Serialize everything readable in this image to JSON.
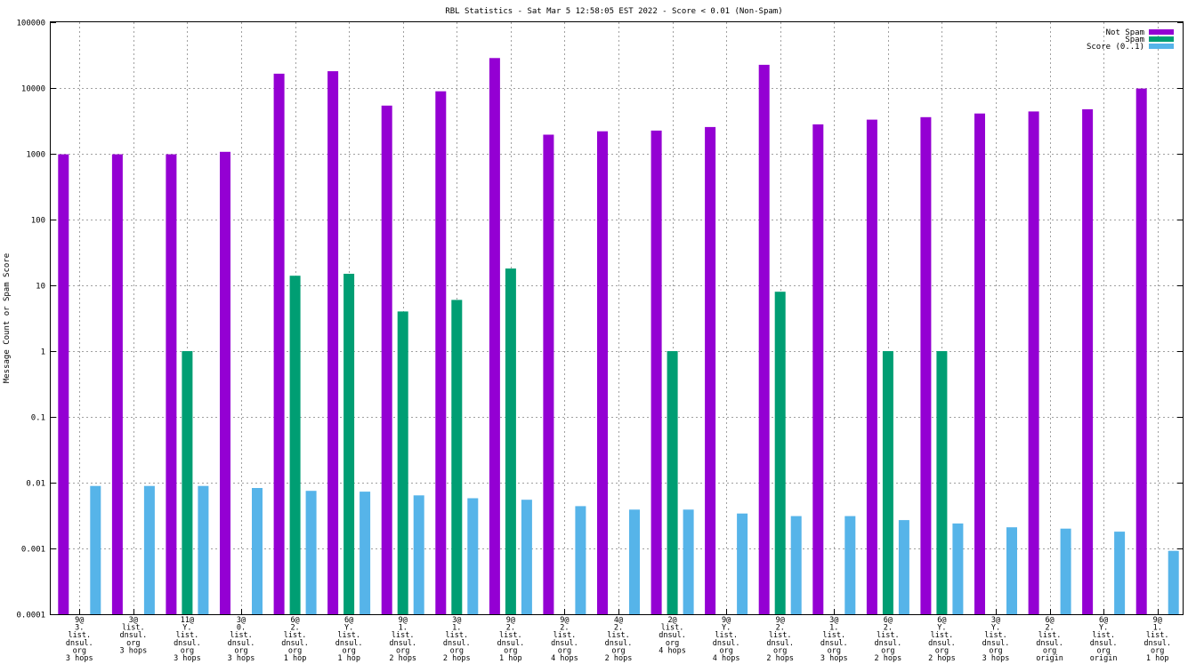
{
  "chart_data": {
    "type": "bar",
    "title": "RBL Statistics - Sat Mar  5 12:58:05 EST 2022 - Score < 0.01 (Non-Spam)",
    "ylabel": "Message Count or Spam Score",
    "xlabel": "",
    "yscale": "log",
    "ylim": [
      0.0001,
      100000
    ],
    "yticks": [
      "0.0001",
      "0.001",
      "0.01",
      "0.1",
      "1",
      "10",
      "100",
      "1000",
      "10000",
      "100000"
    ],
    "grid": true,
    "legend_position": "top-right",
    "categories": [
      [
        "9@",
        "3.",
        "list.",
        "dnsul.",
        "org",
        "3 hops"
      ],
      [
        "3@",
        "list.",
        "dnsul.",
        "org",
        "3 hops"
      ],
      [
        "11@",
        "Y.",
        "list.",
        "dnsul.",
        "org",
        "3 hops"
      ],
      [
        "3@",
        "0.",
        "list.",
        "dnsul.",
        "org",
        "3 hops"
      ],
      [
        "6@",
        "2.",
        "list.",
        "dnsul.",
        "org",
        "1 hop"
      ],
      [
        "6@",
        "Y.",
        "list.",
        "dnsul.",
        "org",
        "1 hop"
      ],
      [
        "9@",
        "1.",
        "list.",
        "dnsul.",
        "org",
        "2 hops"
      ],
      [
        "3@",
        "1.",
        "list.",
        "dnsul.",
        "org",
        "2 hops"
      ],
      [
        "9@",
        "2.",
        "list.",
        "dnsul.",
        "org",
        "1 hop"
      ],
      [
        "9@",
        "2.",
        "list.",
        "dnsul.",
        "org",
        "4 hops"
      ],
      [
        "4@",
        "2.",
        "list.",
        "dnsul.",
        "org",
        "2 hops"
      ],
      [
        "2@",
        "list.",
        "dnsul.",
        "org",
        "4 hops"
      ],
      [
        "9@",
        "Y.",
        "list.",
        "dnsul.",
        "org",
        "4 hops"
      ],
      [
        "9@",
        "2.",
        "list.",
        "dnsul.",
        "org",
        "2 hops"
      ],
      [
        "3@",
        "1.",
        "list.",
        "dnsul.",
        "org",
        "3 hops"
      ],
      [
        "6@",
        "2.",
        "list.",
        "dnsul.",
        "org",
        "2 hops"
      ],
      [
        "6@",
        "Y.",
        "list.",
        "dnsul.",
        "org",
        "2 hops"
      ],
      [
        "3@",
        "Y.",
        "list.",
        "dnsul.",
        "org",
        "3 hops"
      ],
      [
        "6@",
        "2.",
        "list.",
        "dnsul.",
        "org",
        "origin"
      ],
      [
        "6@",
        "Y.",
        "list.",
        "dnsul.",
        "org",
        "origin"
      ],
      [
        "9@",
        "1.",
        "list.",
        "dnsul.",
        "org",
        "1 hop"
      ]
    ],
    "series": [
      {
        "name": "Not Spam",
        "color": "#9400d3",
        "values": [
          980,
          980,
          980,
          1070,
          16500,
          18000,
          5400,
          8900,
          28500,
          1950,
          2200,
          2250,
          2550,
          22500,
          2800,
          3300,
          3600,
          4100,
          4400,
          4750,
          9800
        ]
      },
      {
        "name": "Spam",
        "color": "#009e73",
        "values": [
          null,
          null,
          1,
          null,
          14,
          15,
          4,
          6,
          18,
          null,
          null,
          1,
          null,
          8,
          null,
          1,
          1,
          null,
          null,
          null,
          null
        ]
      },
      {
        "name": "Score (0..1)",
        "color": "#56b4e9",
        "values": [
          0.0089,
          0.0089,
          0.0089,
          0.0083,
          0.0075,
          0.0073,
          0.0064,
          0.0058,
          0.0055,
          0.0044,
          0.0039,
          0.0039,
          0.0034,
          0.0031,
          0.0031,
          0.0027,
          0.0024,
          0.0021,
          0.002,
          0.0018,
          0.00092
        ]
      }
    ]
  }
}
